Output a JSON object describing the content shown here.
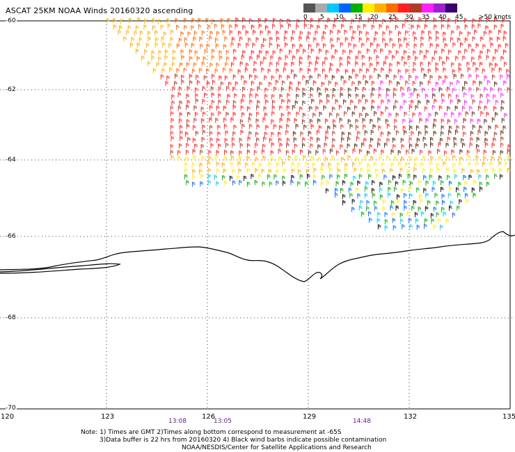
{
  "title": "ASCAT 25KM NOAA Winds 20160320 ascending",
  "legend": {
    "labels": [
      "0",
      "5",
      "10",
      "15",
      "20",
      "25",
      "30",
      "35",
      "40",
      "45",
      ">50 knots"
    ],
    "colors": [
      "#555555",
      "#a9a9a9",
      "#00c8ff",
      "#0066ff",
      "#00b000",
      "#ffee00",
      "#ffb000",
      "#ff6a00",
      "#ff2020",
      "#b23a2a",
      "#ff20ff",
      "#a020d0",
      "#3a0070"
    ]
  },
  "axes": {
    "lat_labels": [
      "-60",
      "-62",
      "-64",
      "-66",
      "-68",
      "-70"
    ],
    "lon_labels": [
      "120",
      "123",
      "126",
      "129",
      "132",
      "135"
    ]
  },
  "time_labels": [
    "13:08",
    "13:05",
    "14:48"
  ],
  "notes": [
    "Note: 1) Times are GMT 2)Times along bottom correspond to measurement at -65S",
    "3)Data buffer is 22 hrs from 20160320 4) Black wind barbs indicate possible contamination",
    "NOAA/NESDIS/Center for Satellite Applications and Research"
  ],
  "palette": {
    "coastline": "#000000",
    "grid": "#000000",
    "time_label": "#6a1b8e"
  }
}
